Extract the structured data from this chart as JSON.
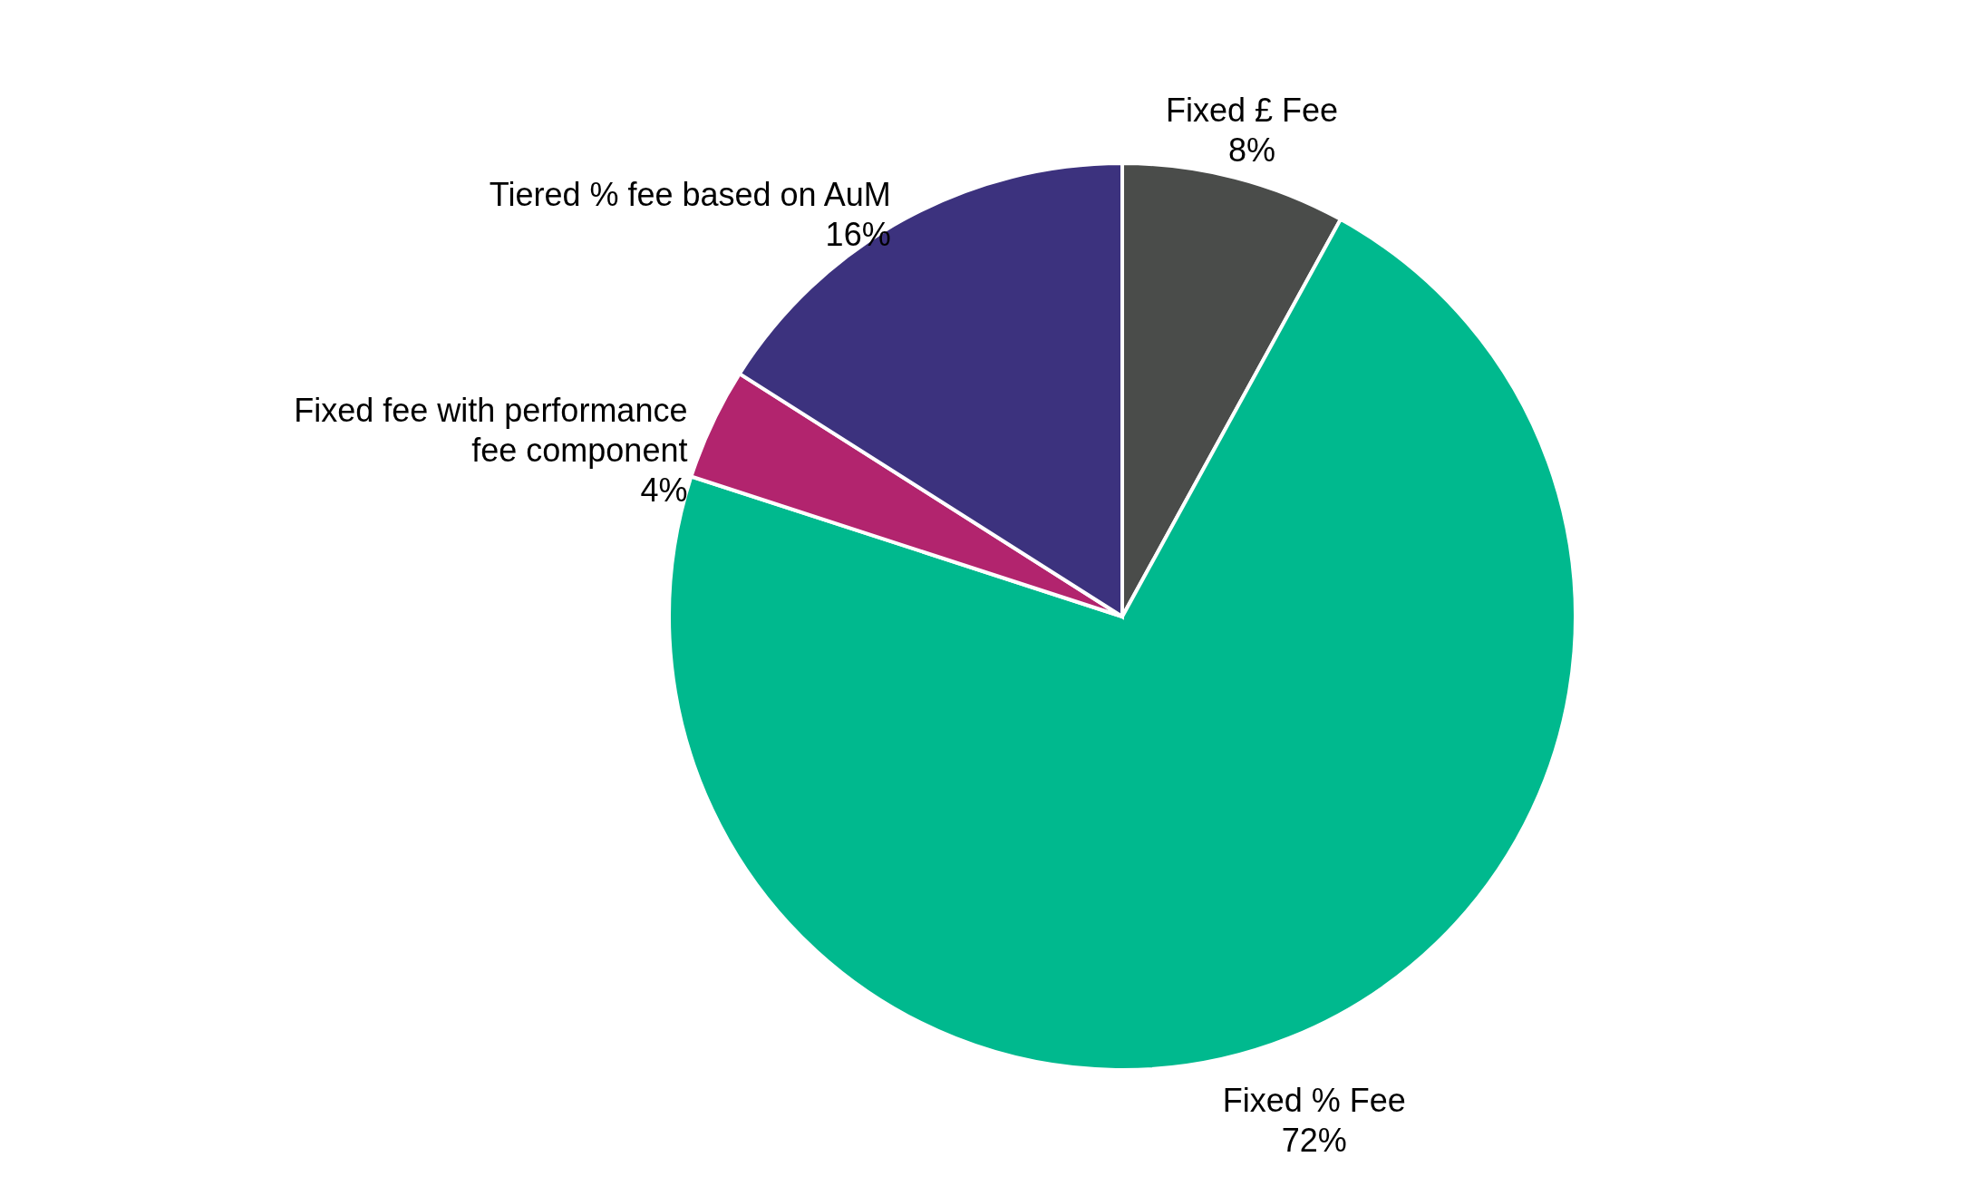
{
  "chart_data": {
    "type": "pie",
    "categories": [
      "Fixed £ Fee",
      "Fixed % Fee",
      "Fixed fee with performance fee component",
      "Tiered % fee based on AuM"
    ],
    "values": [
      8,
      72,
      4,
      16
    ],
    "colors": [
      "#4a4c4a",
      "#00b98e",
      "#b2246e",
      "#3c327e"
    ],
    "value_labels": [
      "8%",
      "72%",
      "4%",
      "16%"
    ]
  }
}
